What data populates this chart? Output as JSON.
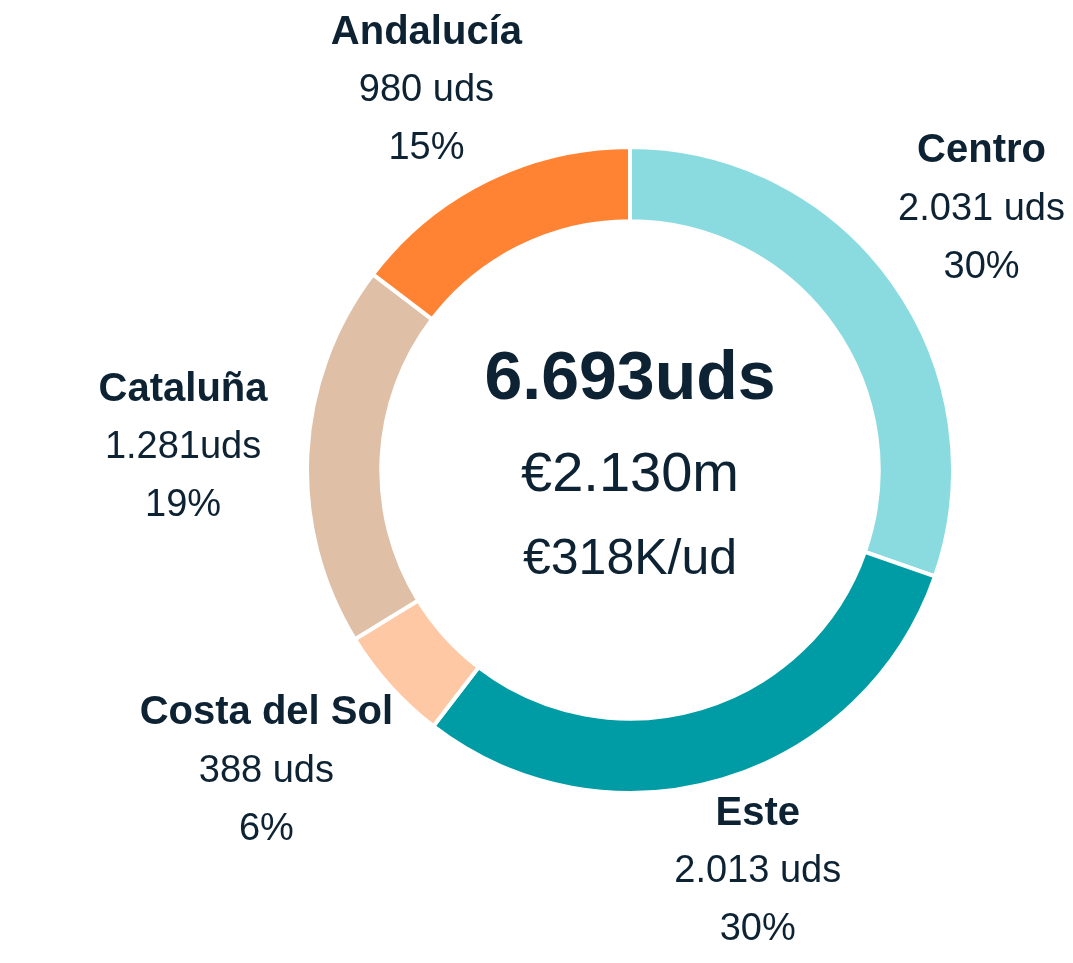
{
  "chart_data": {
    "type": "donut",
    "categories": [
      "Centro",
      "Este",
      "Costa del Sol",
      "Cataluña",
      "Andalucía"
    ],
    "values": [
      2031,
      2013,
      388,
      1281,
      980
    ],
    "colors": [
      "#8adbe0",
      "#009ca6",
      "#ffc8a5",
      "#dfc0a6",
      "#ff8333"
    ],
    "value_labels": [
      "2.031 uds\n30%",
      "2.013 uds\n30%",
      "388 uds\n6%",
      "1.281uds\n19%",
      "980 uds\n15%"
    ],
    "annotations": [
      "6.693uds",
      "€2.130m",
      "€318K/ud"
    ]
  }
}
